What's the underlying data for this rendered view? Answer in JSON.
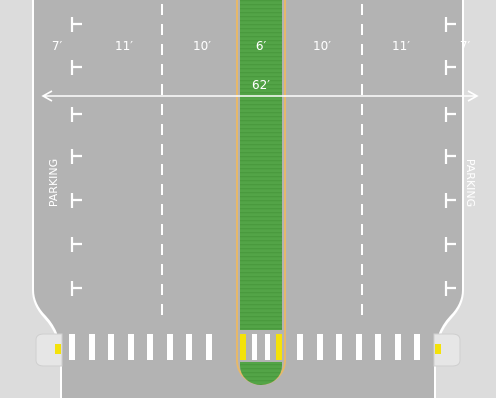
{
  "lanes": [
    {
      "label": "7′",
      "role": "parking-lane"
    },
    {
      "label": "11′",
      "role": "travel-lane"
    },
    {
      "label": "10′",
      "role": "travel-lane"
    },
    {
      "label": "6′",
      "role": "median"
    },
    {
      "label": "10′",
      "role": "travel-lane"
    },
    {
      "label": "11′",
      "role": "travel-lane"
    },
    {
      "label": "7′",
      "role": "parking-lane"
    }
  ],
  "total_width": "62′",
  "parking_left": "PARKING",
  "parking_right": "PARKING",
  "colors": {
    "asphalt": "#b3b3b3",
    "sidewalk": "#dcdcdc",
    "median_green": "#53a447",
    "median_edge": "#e6b86a",
    "marking": "#ffffff",
    "accent_yellow": "#f4e20a"
  }
}
